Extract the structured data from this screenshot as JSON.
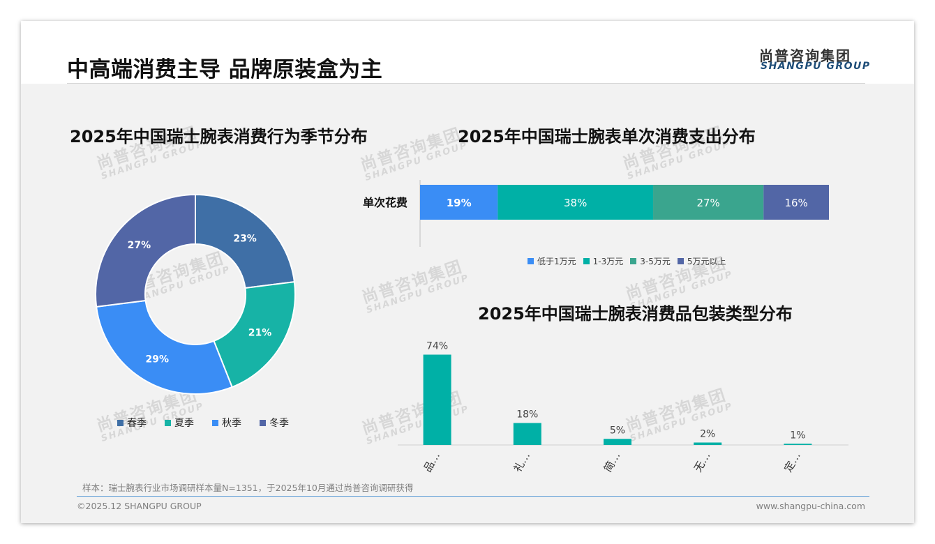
{
  "header": {
    "title": "中高端消费主导 品牌原装盒为主",
    "brand_cn": "尚普咨询集团",
    "brand_en": "SHANGPU GROUP"
  },
  "watermark": {
    "cn": "尚普咨询集团",
    "en": "SHANGPU GROUP"
  },
  "colors": {
    "spring": "#3f6fa6",
    "summer": "#17b3a6",
    "autumn": "#3a8df5",
    "winter": "#5266a6",
    "bar_teal": "#00b0a6",
    "band_green": "#3aa58e"
  },
  "chart_data": [
    {
      "type": "pie",
      "title": "2025年中国瑞士腕表消费行为季节分布",
      "categories": [
        "春季",
        "夏季",
        "秋季",
        "冬季"
      ],
      "values": [
        23,
        21,
        29,
        27
      ],
      "labels": [
        "23%",
        "21%",
        "29%",
        "27%"
      ],
      "colors": [
        "#3f6fa6",
        "#17b3a6",
        "#3a8df5",
        "#5266a6"
      ],
      "donut": true,
      "legend_position": "bottom"
    },
    {
      "type": "bar",
      "orientation": "horizontal-stacked",
      "title": "2025年中国瑞士腕表单次消费支出分布",
      "categories": [
        "单次花费"
      ],
      "series": [
        {
          "name": "低于1万元",
          "values": [
            19
          ],
          "label": "19%",
          "color": "#3a8df5"
        },
        {
          "name": "1-3万元",
          "values": [
            38
          ],
          "label": "38%",
          "color": "#00b0a6"
        },
        {
          "name": "3-5万元",
          "values": [
            27
          ],
          "label": "27%",
          "color": "#3aa58e"
        },
        {
          "name": "5万元以上",
          "values": [
            16
          ],
          "label": "16%",
          "color": "#5266a6"
        }
      ],
      "legend_position": "bottom"
    },
    {
      "type": "bar",
      "title": "2025年中国瑞士腕表消费品包装类型分布",
      "categories": [
        "品…",
        "礼…",
        "简…",
        "无…",
        "定…"
      ],
      "values": [
        74,
        18,
        5,
        2,
        1
      ],
      "labels": [
        "74%",
        "18%",
        "5%",
        "2%",
        "1%"
      ],
      "color": "#00b0a6",
      "ylim": [
        0,
        80
      ]
    }
  ],
  "note": "样本：瑞士腕表行业市场调研样本量N=1351，于2025年10月通过尚普咨询调研获得",
  "footer": {
    "left": "©2025.12 SHANGPU GROUP",
    "right": "www.shangpu-china.com"
  }
}
